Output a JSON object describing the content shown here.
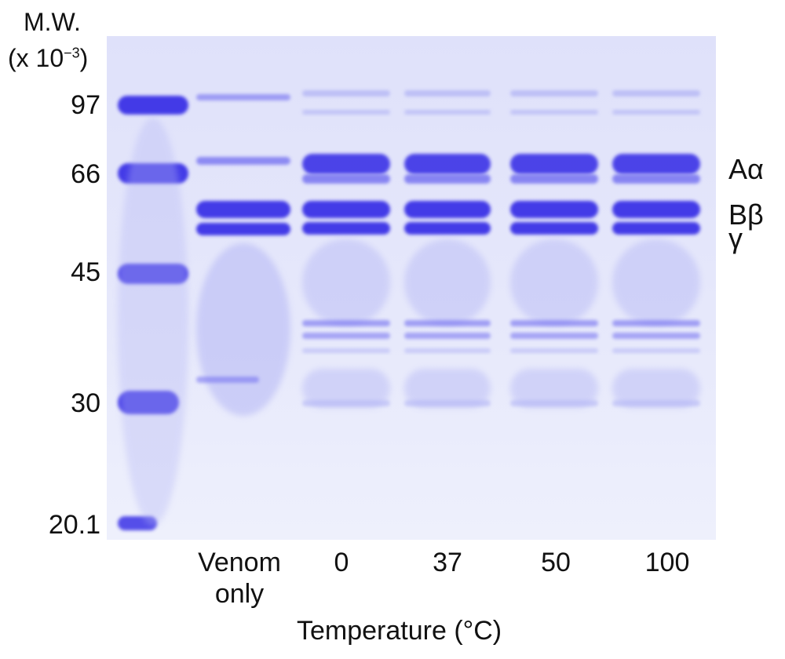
{
  "mw_axis": {
    "title": "M.W.",
    "unit_prefix": "(x 10",
    "unit_exp": "−3",
    "unit_suffix": ")",
    "markers": [
      "97",
      "66",
      "45",
      "30",
      "20.1"
    ]
  },
  "band_labels": [
    "Aα",
    "Bβ",
    "γ"
  ],
  "lanes": [
    {
      "line1": "",
      "line2": ""
    },
    {
      "line1": "Venom",
      "line2": "only"
    },
    {
      "line1": "0",
      "line2": ""
    },
    {
      "line1": "37",
      "line2": ""
    },
    {
      "line1": "50",
      "line2": ""
    },
    {
      "line1": "100",
      "line2": ""
    }
  ],
  "x_axis_title": "Temperature (°C)",
  "colors": {
    "gel_background": "#e6e8fb",
    "band_dark": "#3a33e6",
    "band_mid": "#6f6cf0",
    "band_light": "#b4b6f5"
  }
}
